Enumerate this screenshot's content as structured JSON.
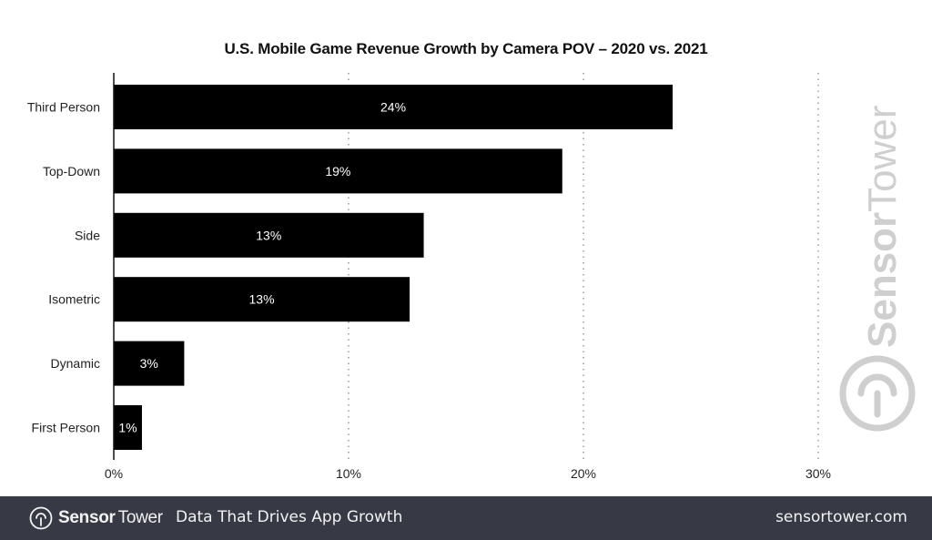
{
  "chart_data": {
    "type": "bar",
    "orientation": "horizontal",
    "title": "U.S. Mobile Game Revenue Growth by Camera POV – 2020 vs. 2021",
    "categories": [
      "Third Person",
      "Top-Down",
      "Side",
      "Isometric",
      "Dynamic",
      "First Person"
    ],
    "values": [
      23.8,
      19.1,
      13.2,
      12.6,
      3.0,
      1.2
    ],
    "data_labels": [
      "24%",
      "19%",
      "13%",
      "13%",
      "3%",
      "1%"
    ],
    "xlabel": "",
    "ylabel": "",
    "xlim": [
      0,
      30
    ],
    "x_ticks": [
      0,
      10,
      20,
      30
    ],
    "x_tick_labels": [
      "0%",
      "10%",
      "20%",
      "30%"
    ],
    "grid": "vertical dotted",
    "legend": "none",
    "bar_color": "#000000"
  },
  "watermark": {
    "brand_bold": "Sensor",
    "brand_light": "Tower"
  },
  "footer": {
    "brand_bold": "Sensor",
    "brand_light": "Tower",
    "tagline": "Data That Drives App Growth",
    "url": "sensortower.com",
    "background": "#373a44"
  }
}
